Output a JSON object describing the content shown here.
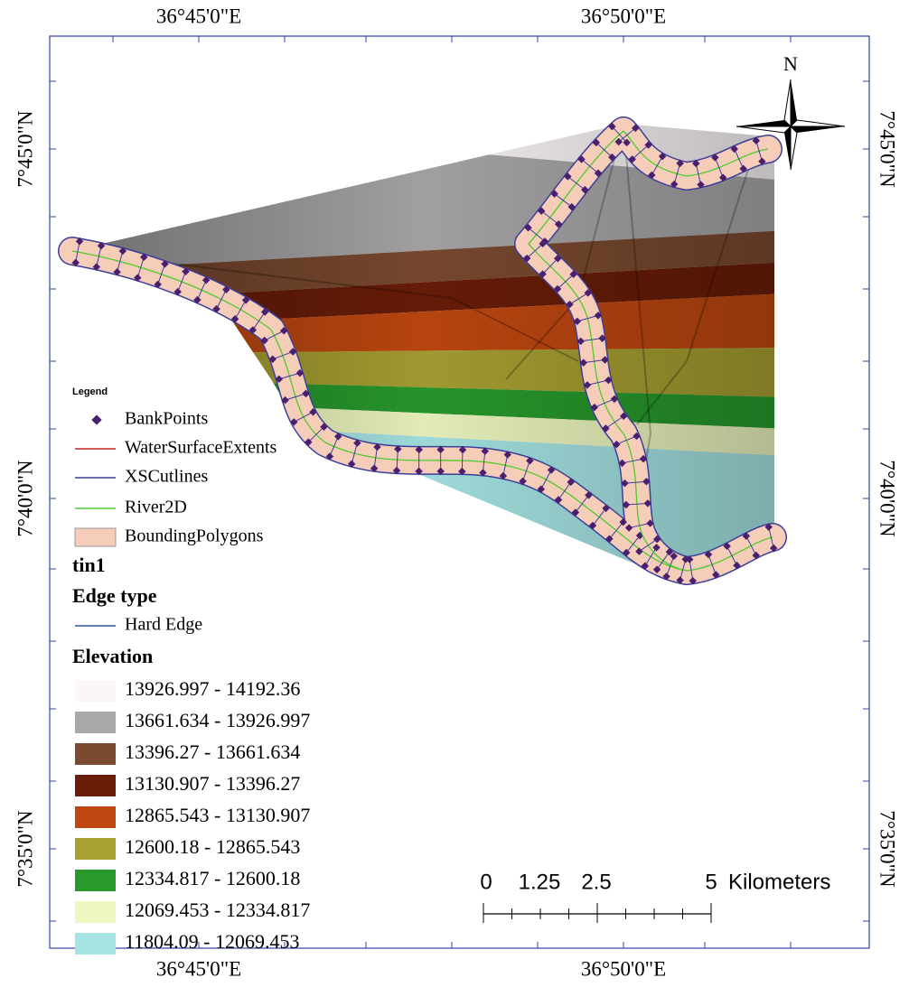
{
  "map": {
    "graticule": {
      "top": [
        "36°45'0\"E",
        "36°50'0\"E"
      ],
      "bottom": [
        "36°45'0\"E",
        "36°50'0\"E"
      ],
      "left": [
        "7°45'0\"N",
        "7°40'0\"N",
        "7°35'0\"N"
      ],
      "right": [
        "7°45'0\"N",
        "7°40'0\"N",
        "7°35'0\"N"
      ]
    },
    "north": "N",
    "legend": {
      "title": "Legend",
      "layers": [
        "BankPoints",
        "WaterSurfaceExtents",
        "XSCutlines",
        "River2D",
        "BoundingPolygons"
      ],
      "tin": "tin1",
      "edge_heading": "Edge type",
      "edge": "Hard Edge",
      "elevation_heading": "Elevation",
      "classes": [
        {
          "label": "13926.997 - 14192.36",
          "color": "#fbf6f9"
        },
        {
          "label": "13661.634 - 13926.997",
          "color": "#a9a7a9"
        },
        {
          "label": "13396.27 - 13661.634",
          "color": "#7b4a30"
        },
        {
          "label": "13130.907 - 13396.27",
          "color": "#6a1d08"
        },
        {
          "label": "12865.543 - 13130.907",
          "color": "#c04810"
        },
        {
          "label": "12600.18 - 12865.543",
          "color": "#a8a032"
        },
        {
          "label": "12334.817 - 12600.18",
          "color": "#289a2c"
        },
        {
          "label": "12069.453 - 12334.817",
          "color": "#eef7c0"
        },
        {
          "label": "11804.09 - 12069.453",
          "color": "#a6e4e4"
        }
      ]
    },
    "scale_bar": {
      "labels": [
        "0",
        "1.25",
        "2.5",
        "5"
      ],
      "unit": "Kilometers"
    }
  }
}
